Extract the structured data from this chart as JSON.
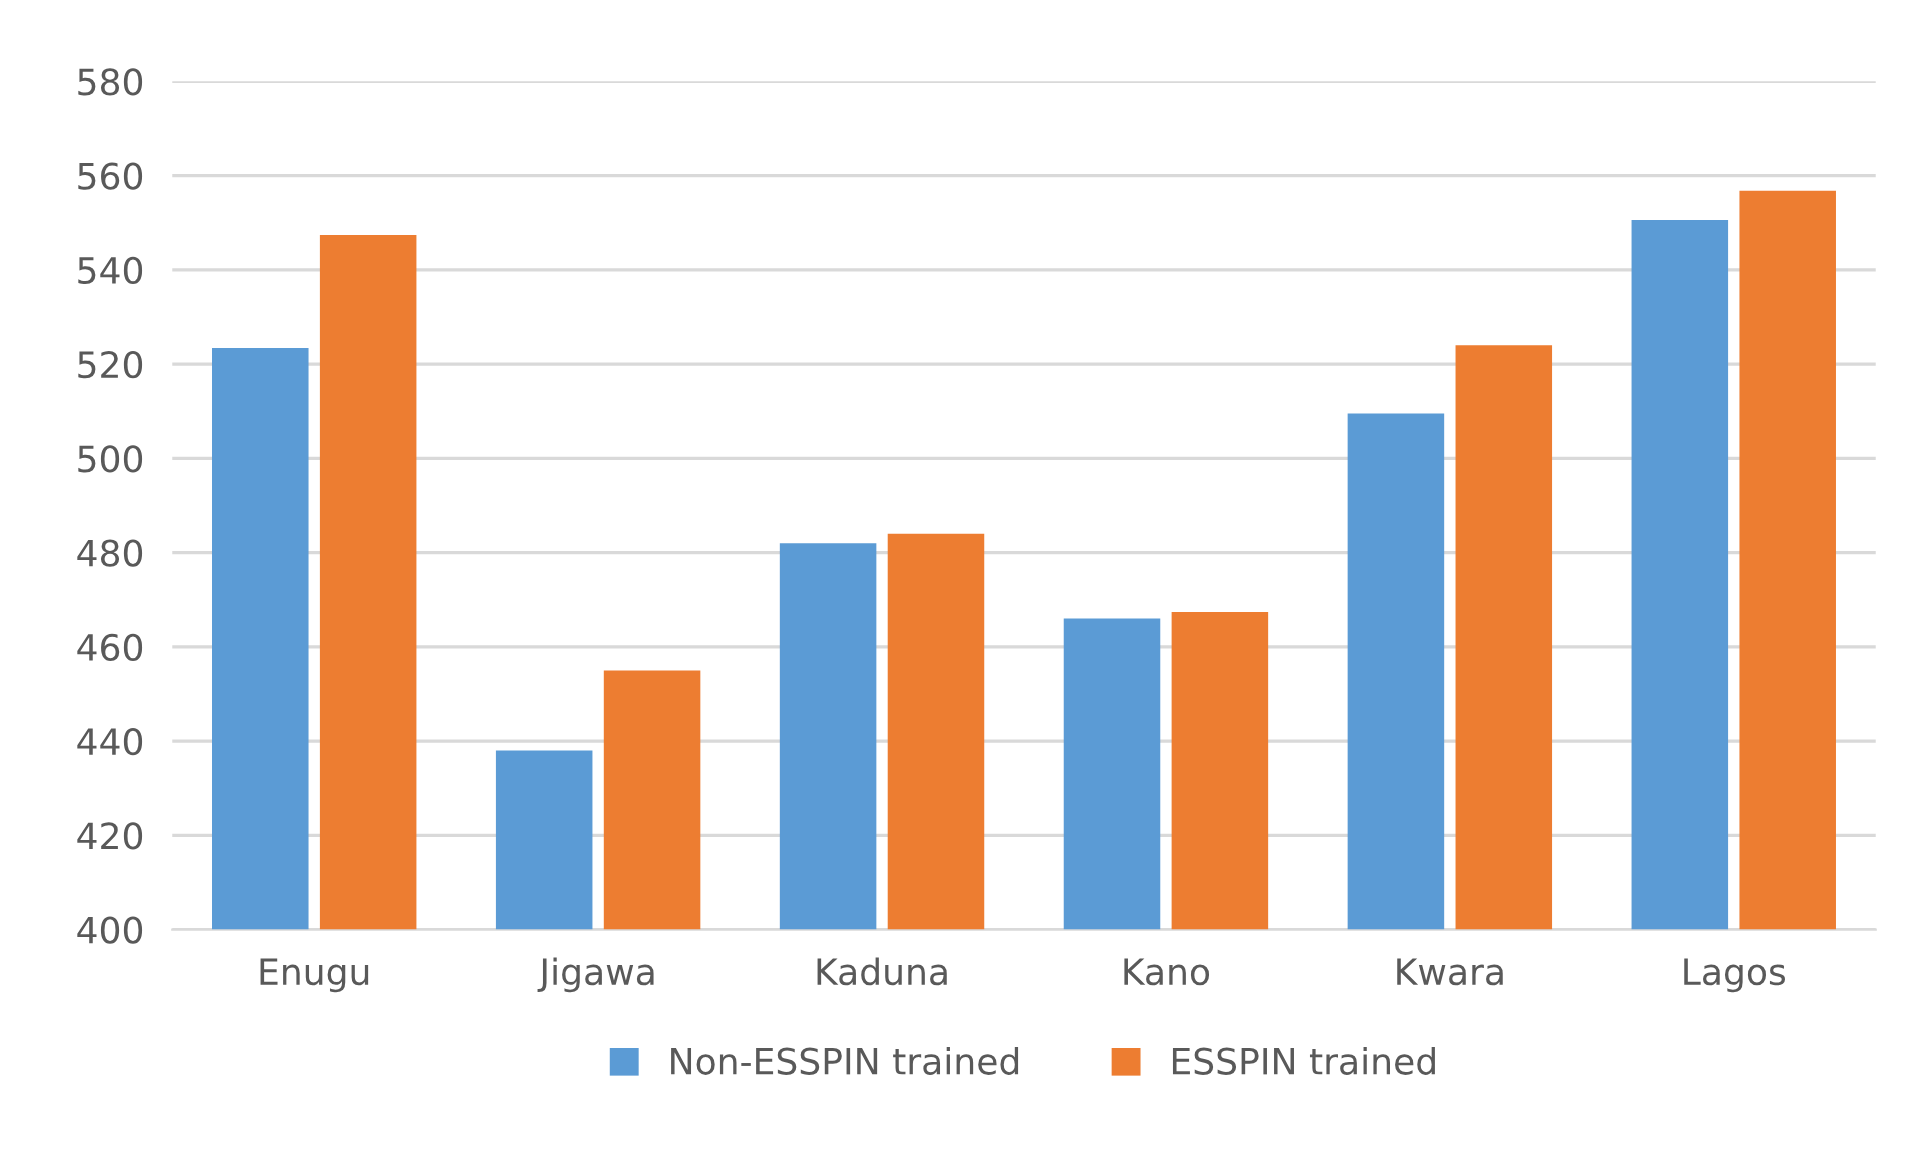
{
  "chart_data": {
    "type": "bar",
    "categories": [
      "Enugu",
      "Jigawa",
      "Kaduna",
      "Kano",
      "Kwara",
      "Lagos"
    ],
    "series": [
      {
        "name": "Non-ESSPIN trained",
        "color": "#5b9bd5",
        "values": [
          523.4,
          438,
          482,
          466,
          509.5,
          550.6
        ]
      },
      {
        "name": "ESSPIN trained",
        "color": "#ed7d31",
        "values": [
          547.4,
          455,
          484,
          467.4,
          524,
          556.8
        ]
      }
    ],
    "ylim": [
      400,
      580
    ],
    "yticks": [
      400,
      420,
      440,
      460,
      480,
      500,
      520,
      540,
      560,
      580
    ],
    "grid": "y",
    "legend": "bottom"
  }
}
